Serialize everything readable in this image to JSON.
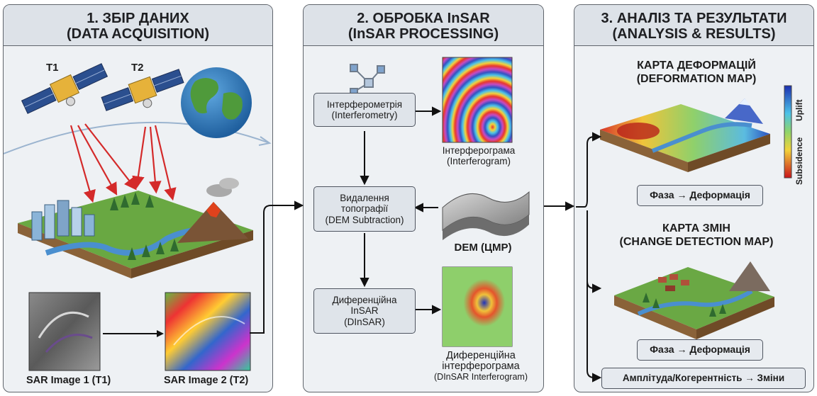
{
  "panels": [
    {
      "title_line1": "1. ЗБІР ДАНИХ",
      "title_line2": "(DATA ACQUISITION)",
      "satellites": [
        "T1",
        "T2"
      ],
      "images": [
        "SAR Image 1 (T1)",
        "SAR Image 2 (T2)"
      ]
    },
    {
      "title_line1": "2. ОБРОБКА InSAR",
      "title_line2": "(InSAR PROCESSING)",
      "steps": [
        {
          "line1": "Інтерферометрія",
          "line2": "(Interferometry)",
          "line3": ""
        },
        {
          "line1": "Видалення",
          "line2": "топографії",
          "line3": "(DEM Subtraction)"
        },
        {
          "line1": "Диференційна",
          "line2": "InSAR",
          "line3": "(DInSAR)"
        }
      ],
      "outputs": [
        {
          "line1": "Інтерферограма",
          "line2": "(Interferogram)",
          "line3": ""
        },
        {
          "line1": "DEM (ЦМР)",
          "line2": "",
          "line3": ""
        },
        {
          "line1": "Диференційна",
          "line2": "інтерферограма",
          "line3": "(DInSAR Interferogram)"
        }
      ]
    },
    {
      "title_line1": "3. АНАЛІЗ ТА РЕЗУЛЬТАТИ",
      "title_line2": "(ANALYSIS & RESULTS)",
      "deformation_map": {
        "line1": "КАРТА ДЕФОРМАЦІЙ",
        "line2": "(DEFORMATION MAP)",
        "colorbar_top": "Uplift",
        "colorbar_bottom": "Subsidence"
      },
      "change_map": {
        "line1": "КАРТА ЗМІН",
        "line2": "(CHANGE DETECTION MAP)"
      },
      "results": [
        "Фаза → Деформація",
        "Фаза → Деформація",
        "Амплітуда/Когерентність → Зміни"
      ]
    }
  ],
  "colors": {
    "panel_bg": "#eef1f4",
    "header_bg": "#dde2e8",
    "border": "#5f646b",
    "signal_red": "#d42a2a",
    "arrow": "#111111"
  }
}
